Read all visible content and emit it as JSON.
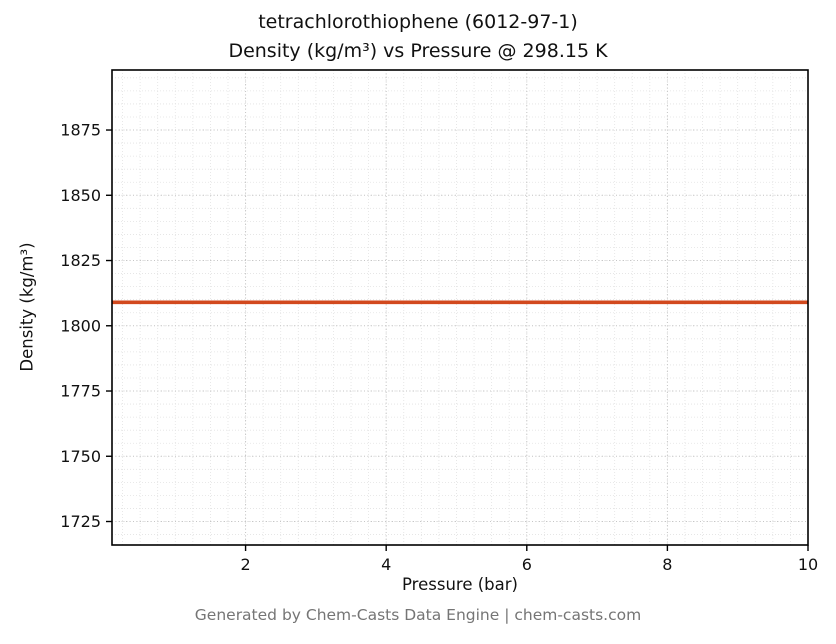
{
  "chart_data": {
    "type": "line",
    "title_line1": "tetrachlorothiophene (6012-97-1)",
    "title_line2": "Density (kg/m³) vs Pressure @ 298.15 K",
    "xlabel": "Pressure (bar)",
    "ylabel": "Density (kg/m³)",
    "xlim": [
      0.1,
      10
    ],
    "ylim": [
      1716,
      1898
    ],
    "xticks": [
      2,
      4,
      6,
      8,
      10
    ],
    "yticks": [
      1725,
      1750,
      1775,
      1800,
      1825,
      1850,
      1875
    ],
    "x_minor_step": 0.25,
    "y_minor_step": 5,
    "grid": true,
    "legend": "none",
    "series": [
      {
        "name": "density",
        "color": "#d2491e",
        "x": [
          0.1,
          10
        ],
        "y": [
          1809,
          1809
        ]
      }
    ]
  },
  "footer": {
    "text": "Generated by Chem-Casts Data Engine | chem-casts.com"
  }
}
